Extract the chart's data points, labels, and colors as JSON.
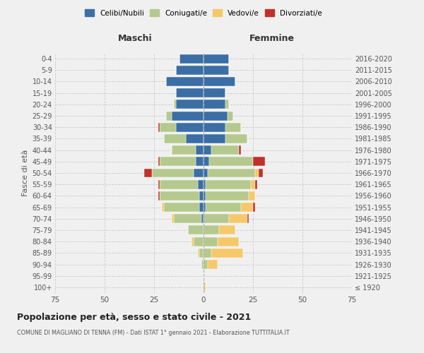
{
  "age_groups": [
    "100+",
    "95-99",
    "90-94",
    "85-89",
    "80-84",
    "75-79",
    "70-74",
    "65-69",
    "60-64",
    "55-59",
    "50-54",
    "45-49",
    "40-44",
    "35-39",
    "30-34",
    "25-29",
    "20-24",
    "15-19",
    "10-14",
    "5-9",
    "0-4"
  ],
  "birth_years": [
    "≤ 1920",
    "1921-1925",
    "1926-1930",
    "1931-1935",
    "1936-1940",
    "1941-1945",
    "1946-1950",
    "1951-1955",
    "1956-1960",
    "1961-1965",
    "1966-1970",
    "1971-1975",
    "1976-1980",
    "1981-1985",
    "1986-1990",
    "1991-1995",
    "1996-2000",
    "2001-2005",
    "2006-2010",
    "2011-2015",
    "2016-2020"
  ],
  "colors": {
    "celibi": "#3a6ea5",
    "coniugati": "#b5c98e",
    "vedovi": "#f5c96a",
    "divorziati": "#c0312b"
  },
  "males": {
    "celibi": [
      0,
      0,
      0,
      0,
      0,
      0,
      1,
      2,
      2,
      3,
      5,
      4,
      4,
      9,
      14,
      16,
      14,
      14,
      19,
      14,
      12
    ],
    "coniugati": [
      0,
      0,
      1,
      2,
      5,
      8,
      14,
      18,
      20,
      19,
      21,
      18,
      12,
      11,
      8,
      3,
      1,
      0,
      0,
      0,
      0
    ],
    "vedovi": [
      0,
      0,
      0,
      1,
      1,
      0,
      1,
      1,
      0,
      0,
      0,
      0,
      0,
      0,
      0,
      0,
      0,
      0,
      0,
      0,
      0
    ],
    "divorziati": [
      0,
      0,
      0,
      0,
      0,
      0,
      0,
      0,
      1,
      1,
      4,
      1,
      0,
      0,
      1,
      0,
      0,
      0,
      0,
      0,
      0
    ]
  },
  "females": {
    "celibi": [
      0,
      0,
      0,
      0,
      0,
      0,
      0,
      1,
      1,
      1,
      2,
      3,
      4,
      11,
      11,
      12,
      11,
      11,
      16,
      13,
      13
    ],
    "coniugati": [
      0,
      0,
      2,
      4,
      7,
      8,
      13,
      18,
      22,
      23,
      24,
      22,
      14,
      11,
      8,
      3,
      2,
      0,
      0,
      0,
      0
    ],
    "vedovi": [
      1,
      0,
      5,
      16,
      11,
      8,
      9,
      6,
      3,
      2,
      2,
      0,
      0,
      0,
      0,
      0,
      0,
      0,
      0,
      0,
      0
    ],
    "divorziati": [
      0,
      0,
      0,
      0,
      0,
      0,
      1,
      1,
      0,
      1,
      2,
      6,
      1,
      0,
      0,
      0,
      0,
      0,
      0,
      0,
      0
    ]
  },
  "xlim": 75,
  "title": "Popolazione per età, sesso e stato civile - 2021",
  "subtitle": "COMUNE DI MAGLIANO DI TENNA (FM) - Dati ISTAT 1° gennaio 2021 - Elaborazione TUTTITALIA.IT",
  "ylabel_left": "Fasce di età",
  "xlabel_left": "Maschi",
  "xlabel_right": "Femmine",
  "background_color": "#f0f0f0",
  "grid_color": "#cccccc"
}
